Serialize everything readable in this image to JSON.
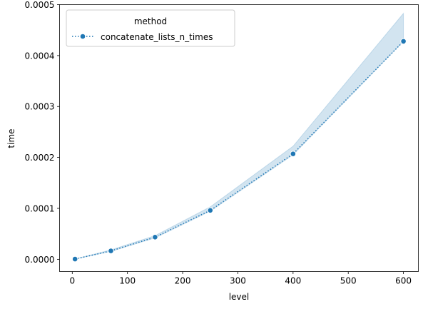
{
  "chart_data": {
    "type": "line",
    "xlabel": "level",
    "ylabel": "time",
    "xlim": [
      -23,
      627
    ],
    "ylim": [
      -2.4e-05,
      0.0005
    ],
    "xticks": [
      0,
      100,
      200,
      300,
      400,
      500,
      600
    ],
    "xtick_labels": [
      "0",
      "100",
      "200",
      "300",
      "400",
      "500",
      "600"
    ],
    "yticks": [
      0,
      0.0001,
      0.0002,
      0.0003,
      0.0004,
      0.0005
    ],
    "ytick_labels": [
      "0.0000",
      "0.0001",
      "0.0002",
      "0.0003",
      "0.0004",
      "0.0005"
    ],
    "grid": false,
    "legend": {
      "title": "method",
      "placement": "top-left"
    },
    "series": [
      {
        "name": "concatenate_lists_n_times",
        "color": "#1f77b4",
        "linestyle": "dotted",
        "marker": "circle",
        "x": [
          5,
          70,
          150,
          250,
          400,
          600
        ],
        "y": [
          5e-07,
          1.65e-05,
          4.35e-05,
          9.6e-05,
          0.000207,
          0.000428
        ],
        "ci_lower": [
          5e-07,
          1.55e-05,
          4.2e-05,
          9.45e-05,
          0.000205,
          0.000428
        ],
        "ci_upper": [
          5e-07,
          1.85e-05,
          4.65e-05,
          0.000103,
          0.000222,
          0.000483
        ]
      }
    ]
  }
}
